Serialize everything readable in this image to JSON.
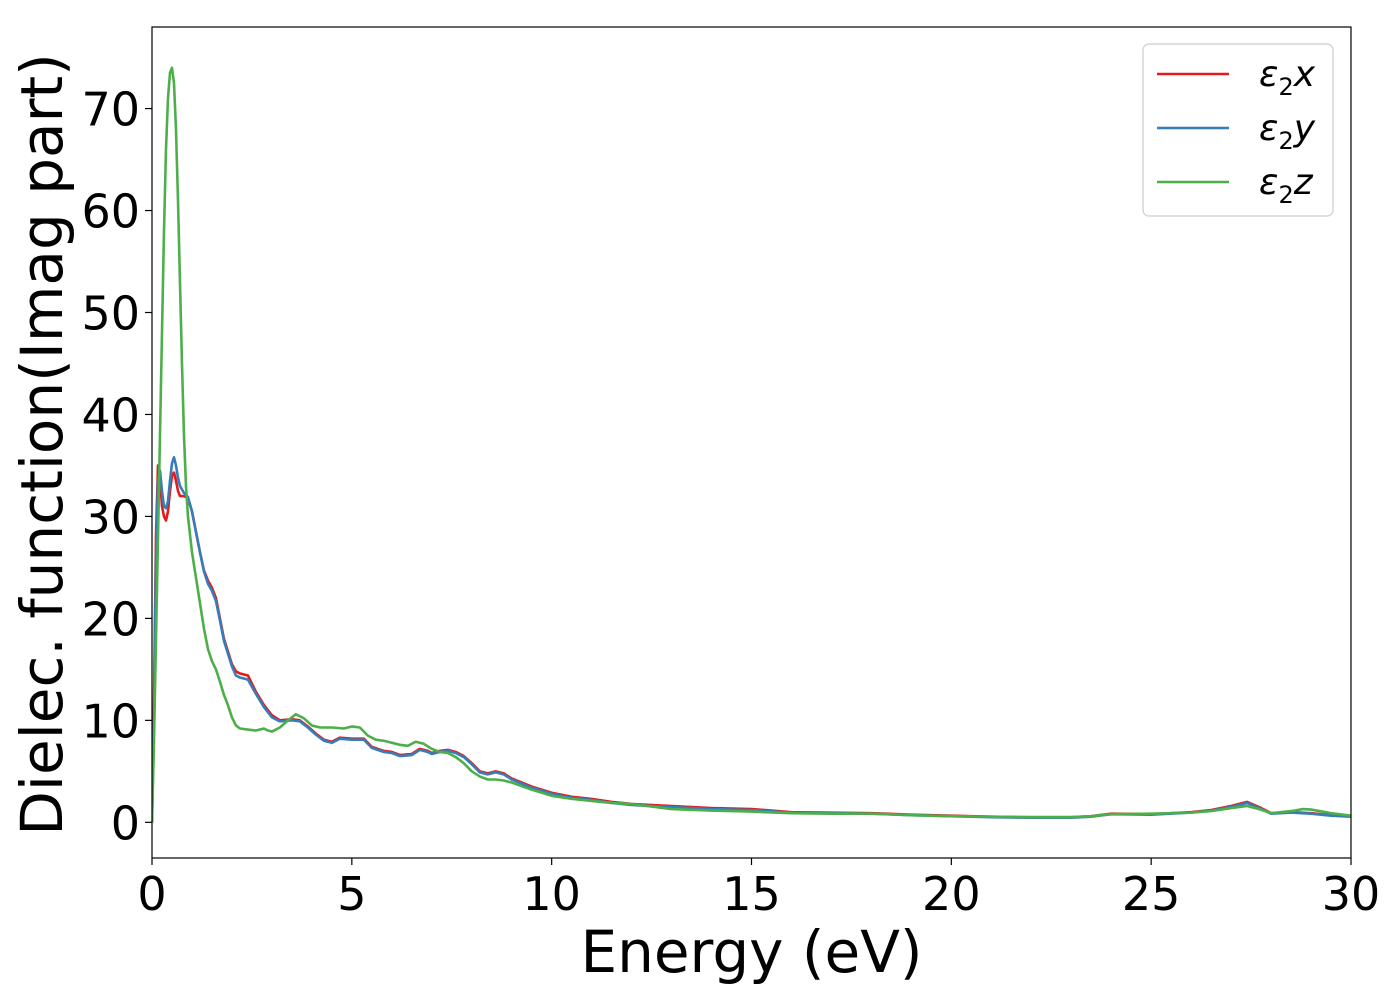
{
  "chart_data": {
    "type": "line",
    "xlabel": "Energy (eV)",
    "ylabel": "Dielec. function(Imag part)",
    "xlim": [
      0,
      30
    ],
    "ylim": [
      -3.5,
      78
    ],
    "xticks": [
      0,
      5,
      10,
      15,
      20,
      25,
      30
    ],
    "yticks": [
      0,
      10,
      20,
      30,
      40,
      50,
      60,
      70
    ],
    "grid": false,
    "legend_position": "top-right",
    "series": [
      {
        "name": "ε₂x",
        "legend": {
          "base": "ε",
          "sub": "2",
          "axis": "x"
        },
        "color": "#e41a1c",
        "points": [
          [
            0,
            0
          ],
          [
            0.05,
            12
          ],
          [
            0.1,
            28
          ],
          [
            0.15,
            35
          ],
          [
            0.2,
            34
          ],
          [
            0.25,
            31
          ],
          [
            0.3,
            30
          ],
          [
            0.35,
            29.6
          ],
          [
            0.4,
            30.5
          ],
          [
            0.45,
            32.5
          ],
          [
            0.5,
            34
          ],
          [
            0.55,
            34.3
          ],
          [
            0.6,
            33.5
          ],
          [
            0.65,
            32.5
          ],
          [
            0.7,
            32
          ],
          [
            0.8,
            32
          ],
          [
            0.9,
            31.8
          ],
          [
            1.0,
            30.5
          ],
          [
            1.1,
            28.5
          ],
          [
            1.2,
            26.5
          ],
          [
            1.3,
            24.7
          ],
          [
            1.4,
            23.7
          ],
          [
            1.5,
            23
          ],
          [
            1.6,
            22
          ],
          [
            1.7,
            20
          ],
          [
            1.8,
            18
          ],
          [
            2.0,
            15.5
          ],
          [
            2.1,
            14.8
          ],
          [
            2.2,
            14.6
          ],
          [
            2.4,
            14.4
          ],
          [
            2.6,
            12.8
          ],
          [
            2.8,
            11.5
          ],
          [
            3.0,
            10.5
          ],
          [
            3.2,
            10.0
          ],
          [
            3.5,
            10.1
          ],
          [
            3.7,
            10.0
          ],
          [
            3.9,
            9.4
          ],
          [
            4.1,
            8.7
          ],
          [
            4.3,
            8.1
          ],
          [
            4.5,
            7.9
          ],
          [
            4.7,
            8.3
          ],
          [
            5.0,
            8.2
          ],
          [
            5.3,
            8.2
          ],
          [
            5.5,
            7.4
          ],
          [
            5.8,
            7.0
          ],
          [
            6.0,
            6.9
          ],
          [
            6.2,
            6.6
          ],
          [
            6.5,
            6.7
          ],
          [
            6.7,
            7.2
          ],
          [
            6.9,
            7.0
          ],
          [
            7.0,
            6.8
          ],
          [
            7.2,
            7.0
          ],
          [
            7.4,
            7.1
          ],
          [
            7.6,
            6.9
          ],
          [
            7.8,
            6.5
          ],
          [
            8.0,
            5.8
          ],
          [
            8.2,
            5.0
          ],
          [
            8.4,
            4.8
          ],
          [
            8.6,
            5.0
          ],
          [
            8.8,
            4.8
          ],
          [
            9.0,
            4.3
          ],
          [
            9.5,
            3.5
          ],
          [
            10,
            2.9
          ],
          [
            10.5,
            2.5
          ],
          [
            11,
            2.3
          ],
          [
            11.5,
            2.0
          ],
          [
            12,
            1.8
          ],
          [
            13,
            1.6
          ],
          [
            14,
            1.4
          ],
          [
            15,
            1.3
          ],
          [
            16,
            1.0
          ],
          [
            17,
            0.95
          ],
          [
            18,
            0.9
          ],
          [
            19,
            0.75
          ],
          [
            20,
            0.65
          ],
          [
            21,
            0.55
          ],
          [
            22,
            0.5
          ],
          [
            23,
            0.5
          ],
          [
            23.5,
            0.6
          ],
          [
            24,
            0.85
          ],
          [
            25,
            0.8
          ],
          [
            26,
            1.0
          ],
          [
            26.5,
            1.2
          ],
          [
            27,
            1.6
          ],
          [
            27.4,
            2.0
          ],
          [
            27.7,
            1.5
          ],
          [
            28,
            0.9
          ],
          [
            28.5,
            1.0
          ],
          [
            29,
            0.9
          ],
          [
            29.5,
            0.7
          ],
          [
            30,
            0.6
          ]
        ]
      },
      {
        "name": "ε₂y",
        "legend": {
          "base": "ε",
          "sub": "2",
          "axis": "y"
        },
        "color": "#377eb8",
        "points": [
          [
            0,
            0
          ],
          [
            0.05,
            10
          ],
          [
            0.1,
            26
          ],
          [
            0.15,
            33.5
          ],
          [
            0.2,
            34.5
          ],
          [
            0.25,
            32.5
          ],
          [
            0.3,
            31
          ],
          [
            0.35,
            30.8
          ],
          [
            0.4,
            31.5
          ],
          [
            0.45,
            33.5
          ],
          [
            0.5,
            35.2
          ],
          [
            0.55,
            35.8
          ],
          [
            0.6,
            35
          ],
          [
            0.65,
            33.8
          ],
          [
            0.7,
            33
          ],
          [
            0.8,
            32.3
          ],
          [
            0.9,
            31.9
          ],
          [
            1.0,
            30.5
          ],
          [
            1.1,
            28.5
          ],
          [
            1.2,
            26.5
          ],
          [
            1.3,
            24.6
          ],
          [
            1.4,
            23.4
          ],
          [
            1.5,
            22.7
          ],
          [
            1.6,
            21.7
          ],
          [
            1.7,
            19.8
          ],
          [
            1.8,
            17.8
          ],
          [
            2.0,
            15.3
          ],
          [
            2.1,
            14.4
          ],
          [
            2.2,
            14.2
          ],
          [
            2.4,
            14.0
          ],
          [
            2.6,
            12.6
          ],
          [
            2.8,
            11.3
          ],
          [
            3.0,
            10.3
          ],
          [
            3.2,
            9.9
          ],
          [
            3.5,
            10.0
          ],
          [
            3.7,
            9.9
          ],
          [
            3.9,
            9.3
          ],
          [
            4.1,
            8.6
          ],
          [
            4.3,
            8.0
          ],
          [
            4.5,
            7.8
          ],
          [
            4.7,
            8.2
          ],
          [
            5.0,
            8.1
          ],
          [
            5.3,
            8.1
          ],
          [
            5.5,
            7.3
          ],
          [
            5.8,
            6.9
          ],
          [
            6.0,
            6.8
          ],
          [
            6.2,
            6.5
          ],
          [
            6.5,
            6.6
          ],
          [
            6.7,
            7.1
          ],
          [
            6.9,
            6.9
          ],
          [
            7.0,
            6.7
          ],
          [
            7.2,
            6.9
          ],
          [
            7.4,
            7.0
          ],
          [
            7.6,
            6.8
          ],
          [
            7.8,
            6.4
          ],
          [
            8.0,
            5.7
          ],
          [
            8.2,
            4.9
          ],
          [
            8.4,
            4.7
          ],
          [
            8.6,
            4.9
          ],
          [
            8.8,
            4.7
          ],
          [
            9.0,
            4.2
          ],
          [
            9.5,
            3.4
          ],
          [
            10,
            2.8
          ],
          [
            10.5,
            2.4
          ],
          [
            11,
            2.2
          ],
          [
            11.5,
            1.9
          ],
          [
            12,
            1.7
          ],
          [
            13,
            1.5
          ],
          [
            14,
            1.3
          ],
          [
            15,
            1.2
          ],
          [
            16,
            0.95
          ],
          [
            17,
            0.9
          ],
          [
            18,
            0.85
          ],
          [
            19,
            0.7
          ],
          [
            20,
            0.6
          ],
          [
            21,
            0.5
          ],
          [
            22,
            0.45
          ],
          [
            23,
            0.45
          ],
          [
            23.5,
            0.55
          ],
          [
            24,
            0.8
          ],
          [
            25,
            0.75
          ],
          [
            26,
            0.95
          ],
          [
            26.5,
            1.15
          ],
          [
            27,
            1.5
          ],
          [
            27.4,
            1.9
          ],
          [
            27.7,
            1.4
          ],
          [
            28,
            0.85
          ],
          [
            28.5,
            0.95
          ],
          [
            29,
            0.85
          ],
          [
            29.5,
            0.65
          ],
          [
            30,
            0.55
          ]
        ]
      },
      {
        "name": "ε₂z",
        "legend": {
          "base": "ε",
          "sub": "2",
          "axis": "z"
        },
        "color": "#4daf4a",
        "points": [
          [
            0,
            0
          ],
          [
            0.05,
            8
          ],
          [
            0.1,
            18
          ],
          [
            0.15,
            28
          ],
          [
            0.2,
            38
          ],
          [
            0.25,
            48
          ],
          [
            0.3,
            58
          ],
          [
            0.35,
            66
          ],
          [
            0.4,
            71
          ],
          [
            0.45,
            73.5
          ],
          [
            0.5,
            74
          ],
          [
            0.55,
            72.5
          ],
          [
            0.6,
            68
          ],
          [
            0.65,
            61
          ],
          [
            0.7,
            53
          ],
          [
            0.75,
            45
          ],
          [
            0.8,
            38
          ],
          [
            0.85,
            33
          ],
          [
            0.9,
            30
          ],
          [
            1.0,
            26.5
          ],
          [
            1.1,
            24
          ],
          [
            1.2,
            21.5
          ],
          [
            1.3,
            19
          ],
          [
            1.4,
            17
          ],
          [
            1.5,
            15.8
          ],
          [
            1.6,
            15
          ],
          [
            1.7,
            13.8
          ],
          [
            1.8,
            12.5
          ],
          [
            1.9,
            11.5
          ],
          [
            2.0,
            10.3
          ],
          [
            2.1,
            9.5
          ],
          [
            2.2,
            9.2
          ],
          [
            2.4,
            9.1
          ],
          [
            2.6,
            9.0
          ],
          [
            2.8,
            9.2
          ],
          [
            2.9,
            9.0
          ],
          [
            3.0,
            8.9
          ],
          [
            3.2,
            9.3
          ],
          [
            3.4,
            10.0
          ],
          [
            3.6,
            10.6
          ],
          [
            3.8,
            10.2
          ],
          [
            4.0,
            9.5
          ],
          [
            4.2,
            9.3
          ],
          [
            4.5,
            9.3
          ],
          [
            4.8,
            9.2
          ],
          [
            5.0,
            9.4
          ],
          [
            5.2,
            9.3
          ],
          [
            5.4,
            8.5
          ],
          [
            5.6,
            8.1
          ],
          [
            5.8,
            8.0
          ],
          [
            6.0,
            7.8
          ],
          [
            6.2,
            7.6
          ],
          [
            6.4,
            7.5
          ],
          [
            6.6,
            7.9
          ],
          [
            6.8,
            7.7
          ],
          [
            7.0,
            7.2
          ],
          [
            7.2,
            6.9
          ],
          [
            7.4,
            6.8
          ],
          [
            7.6,
            6.4
          ],
          [
            7.8,
            5.8
          ],
          [
            8.0,
            5.0
          ],
          [
            8.2,
            4.5
          ],
          [
            8.4,
            4.2
          ],
          [
            8.6,
            4.2
          ],
          [
            8.8,
            4.1
          ],
          [
            9.0,
            3.9
          ],
          [
            9.5,
            3.2
          ],
          [
            10,
            2.6
          ],
          [
            10.5,
            2.3
          ],
          [
            11,
            2.1
          ],
          [
            11.5,
            1.9
          ],
          [
            12,
            1.8
          ],
          [
            13,
            1.3
          ],
          [
            14,
            1.15
          ],
          [
            15,
            1.05
          ],
          [
            16,
            0.9
          ],
          [
            17,
            0.85
          ],
          [
            18,
            0.85
          ],
          [
            19,
            0.7
          ],
          [
            20,
            0.6
          ],
          [
            21,
            0.55
          ],
          [
            22,
            0.5
          ],
          [
            23,
            0.5
          ],
          [
            23.5,
            0.6
          ],
          [
            24,
            0.8
          ],
          [
            25,
            0.85
          ],
          [
            26,
            0.95
          ],
          [
            26.5,
            1.1
          ],
          [
            27,
            1.4
          ],
          [
            27.4,
            1.6
          ],
          [
            27.7,
            1.3
          ],
          [
            28,
            0.9
          ],
          [
            28.5,
            1.1
          ],
          [
            28.8,
            1.3
          ],
          [
            29,
            1.25
          ],
          [
            29.5,
            0.9
          ],
          [
            30,
            0.65
          ]
        ]
      }
    ]
  }
}
